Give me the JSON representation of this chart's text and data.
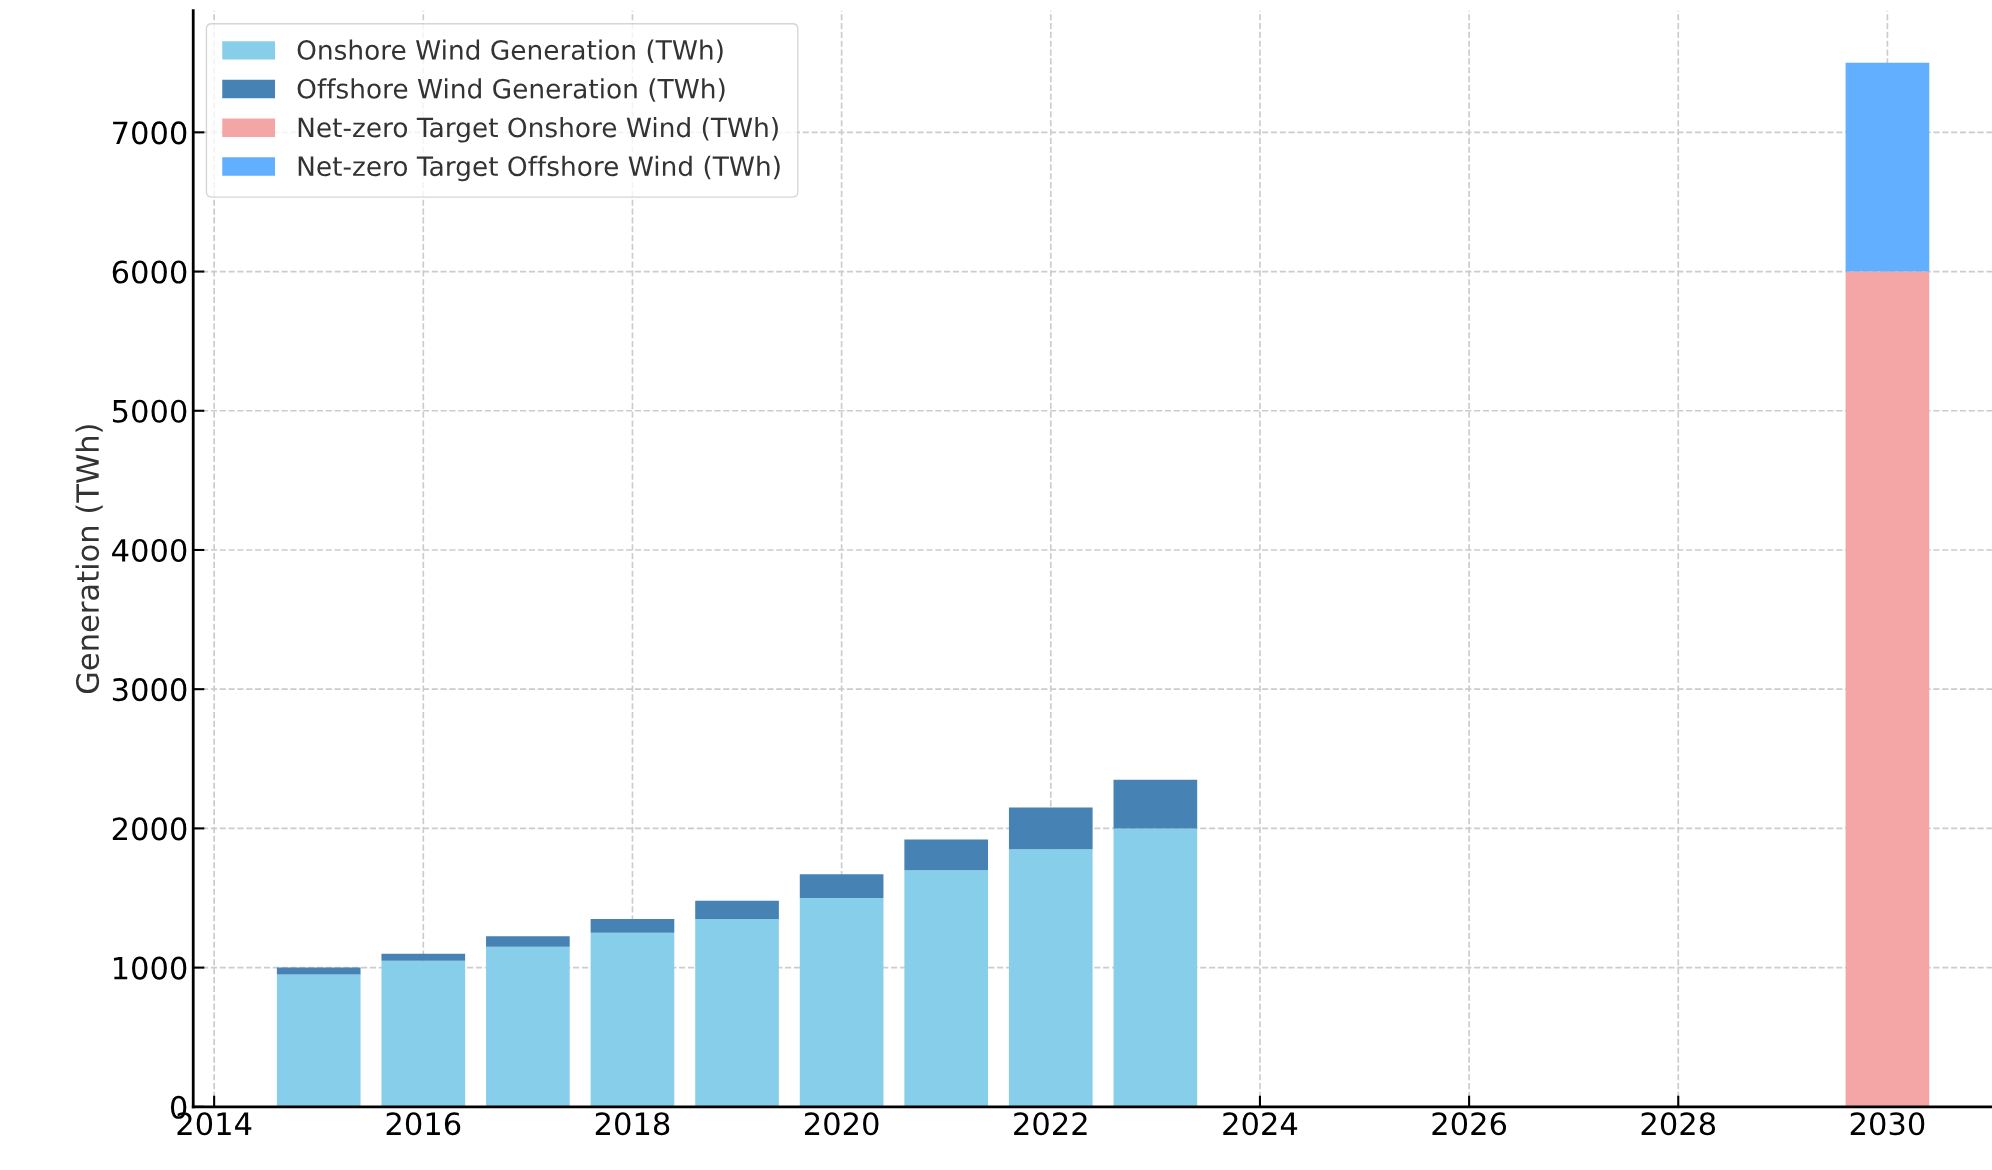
{
  "chart_data": {
    "type": "bar",
    "stacked": true,
    "ylabel": "Generation (TWh)",
    "x": [
      2015,
      2016,
      2017,
      2018,
      2019,
      2020,
      2021,
      2022,
      2023,
      2030
    ],
    "series": [
      {
        "name": "Onshore Wind Generation (TWh)",
        "color": "#87ceeb",
        "values": [
          950,
          1050,
          1150,
          1250,
          1350,
          1500,
          1700,
          1850,
          2000,
          null
        ]
      },
      {
        "name": "Offshore Wind Generation (TWh)",
        "color": "#4682b4",
        "values": [
          50,
          50,
          75,
          100,
          130,
          170,
          220,
          300,
          350,
          null
        ]
      },
      {
        "name": "Net-zero Target Onshore Wind (TWh)",
        "color": "#f4a6a6",
        "values": [
          null,
          null,
          null,
          null,
          null,
          null,
          null,
          null,
          null,
          6000
        ]
      },
      {
        "name": "Net-zero Target Offshore Wind (TWh)",
        "color": "#61affe",
        "values": [
          null,
          null,
          null,
          null,
          null,
          null,
          null,
          null,
          null,
          1500
        ]
      }
    ],
    "xlim": [
      2013.8,
      2031.0
    ],
    "xticks": [
      2014,
      2016,
      2018,
      2020,
      2022,
      2024,
      2026,
      2028,
      2030
    ],
    "ylim": [
      0,
      7875
    ],
    "yticks": [
      0,
      1000,
      2000,
      3000,
      4000,
      5000,
      6000,
      7000
    ],
    "grid": true,
    "legend": "top left"
  }
}
